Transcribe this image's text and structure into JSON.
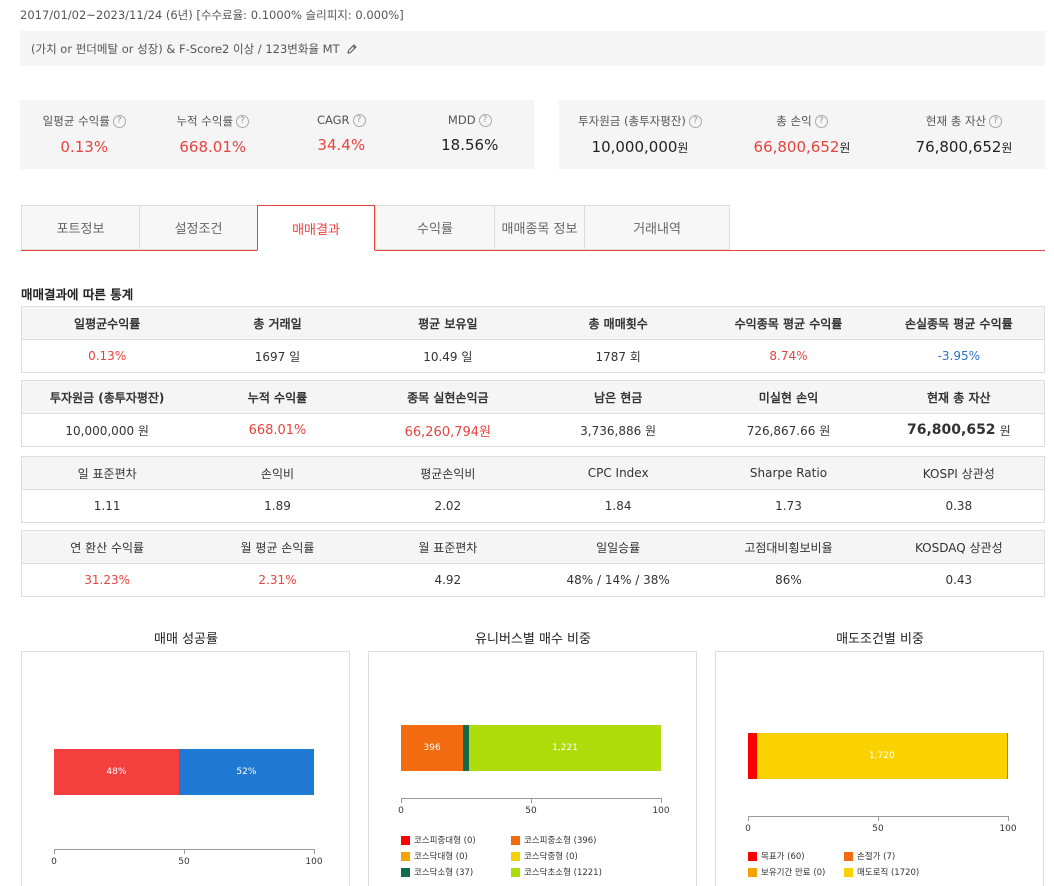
{
  "period": "2017/01/02~2023/11/24 (6년) [수수료율: 0.1000% 슬리피지: 0.000%]",
  "strategy": "(가치 or 펀더메탈 or 성장) & F-Score2 이상 / 123변화율 MT",
  "summary_left": [
    {
      "label": "일평균 수익률",
      "value": "0.13%"
    },
    {
      "label": "누적 수익률",
      "value": "668.01%"
    },
    {
      "label": "CAGR",
      "value": "34.4%"
    },
    {
      "label": "MDD",
      "value": "18.56%"
    }
  ],
  "summary_right": [
    {
      "label": "투자원금 (총투자평잔)",
      "value": "10,000,000",
      "unit": "원"
    },
    {
      "label": "총 손익",
      "value": "66,800,652",
      "unit": "원"
    },
    {
      "label": "현재 총 자산",
      "value": "76,800,652",
      "unit": "원"
    }
  ],
  "tabs": [
    "포트정보",
    "설정조건",
    "매매결과",
    "수익률",
    "매매종목 정보",
    "거래내역"
  ],
  "active_tab": "매매결과",
  "stats_title": "매매결과에 따른 통계",
  "table1": {
    "headers": [
      "일평균수익률",
      "총 거래일",
      "평균 보유일",
      "총 매매횟수",
      "수익종목 평균 수익률",
      "손실종목 평균 수익률"
    ],
    "values": [
      "0.13%",
      "1697 일",
      "10.49 일",
      "1787 회",
      "8.74%",
      "-3.95%"
    ]
  },
  "table2": {
    "headers": [
      "투자원금 (총투자평잔)",
      "누적 수익률",
      "종목 실현손익금",
      "남은 현금",
      "미실현 손익",
      "현재 총 자산"
    ],
    "values": [
      "10,000,000 원",
      "668.01%",
      "66,260,794원",
      "3,736,886 원",
      "726,867.66 원",
      "76,800,652"
    ],
    "last_unit": "원"
  },
  "table3": {
    "headers": [
      "일 표준편차",
      "손익비",
      "평균손익비",
      "CPC Index",
      "Sharpe Ratio",
      "KOSPI 상관성"
    ],
    "values": [
      "1.11",
      "1.89",
      "2.02",
      "1.84",
      "1.73",
      "0.38"
    ]
  },
  "table4": {
    "headers": [
      "연 환산 수익률",
      "월 평균 손익률",
      "월 표준편차",
      "일일승률",
      "고점대비횡보비율",
      "KOSDAQ 상관성"
    ],
    "values": [
      "31.23%",
      "2.31%",
      "4.92",
      "48% / 14% / 38%",
      "86%",
      "0.43"
    ]
  },
  "charts": {
    "success": {
      "title": "매매 성공률",
      "segments": [
        {
          "label": "48%",
          "value": 48,
          "color": "#f43f3f"
        },
        {
          "label": "52%",
          "value": 52,
          "color": "#1f78d1"
        }
      ],
      "ticks": [
        "0",
        "50",
        "100"
      ]
    },
    "universe": {
      "title": "유니버스별 매수 비중",
      "segments": [
        {
          "label": "396",
          "value": 396,
          "color": "#f26b0f"
        },
        {
          "label": "",
          "value": 37,
          "color": "#106b4a"
        },
        {
          "label": "1,221",
          "value": 1221,
          "color": "#aedc0a"
        }
      ],
      "total": 1654,
      "ticks": [
        "0",
        "50",
        "100"
      ],
      "legend": [
        {
          "label": "코스피중대형 (0)",
          "color": "#ff0000"
        },
        {
          "label": "코스피중소형 (396)",
          "color": "#f26b0f"
        },
        {
          "label": "코스닥대형 (0)",
          "color": "#f5a300"
        },
        {
          "label": "코스닥중형 (0)",
          "color": "#f5d000"
        },
        {
          "label": "코스닥소형 (37)",
          "color": "#106b4a"
        },
        {
          "label": "코스닥초소형 (1221)",
          "color": "#aedc0a"
        }
      ]
    },
    "sell": {
      "title": "매도조건별 비중",
      "segments": [
        {
          "label": "",
          "value": 60,
          "color": "#ff0000"
        },
        {
          "label": "1,720",
          "value": 1720,
          "color": "#fad200"
        },
        {
          "label": "",
          "value": 7,
          "color": "#a08a20"
        }
      ],
      "total": 1787,
      "ticks": [
        "0",
        "50",
        "100"
      ],
      "legend": [
        {
          "label": "목표가 (60)",
          "color": "#ff0000"
        },
        {
          "label": "손절가 (7)",
          "color": "#f26b0f"
        },
        {
          "label": "보유기간 만료 (0)",
          "color": "#f5a300"
        },
        {
          "label": "매도로직 (1720)",
          "color": "#fad200"
        }
      ]
    }
  }
}
